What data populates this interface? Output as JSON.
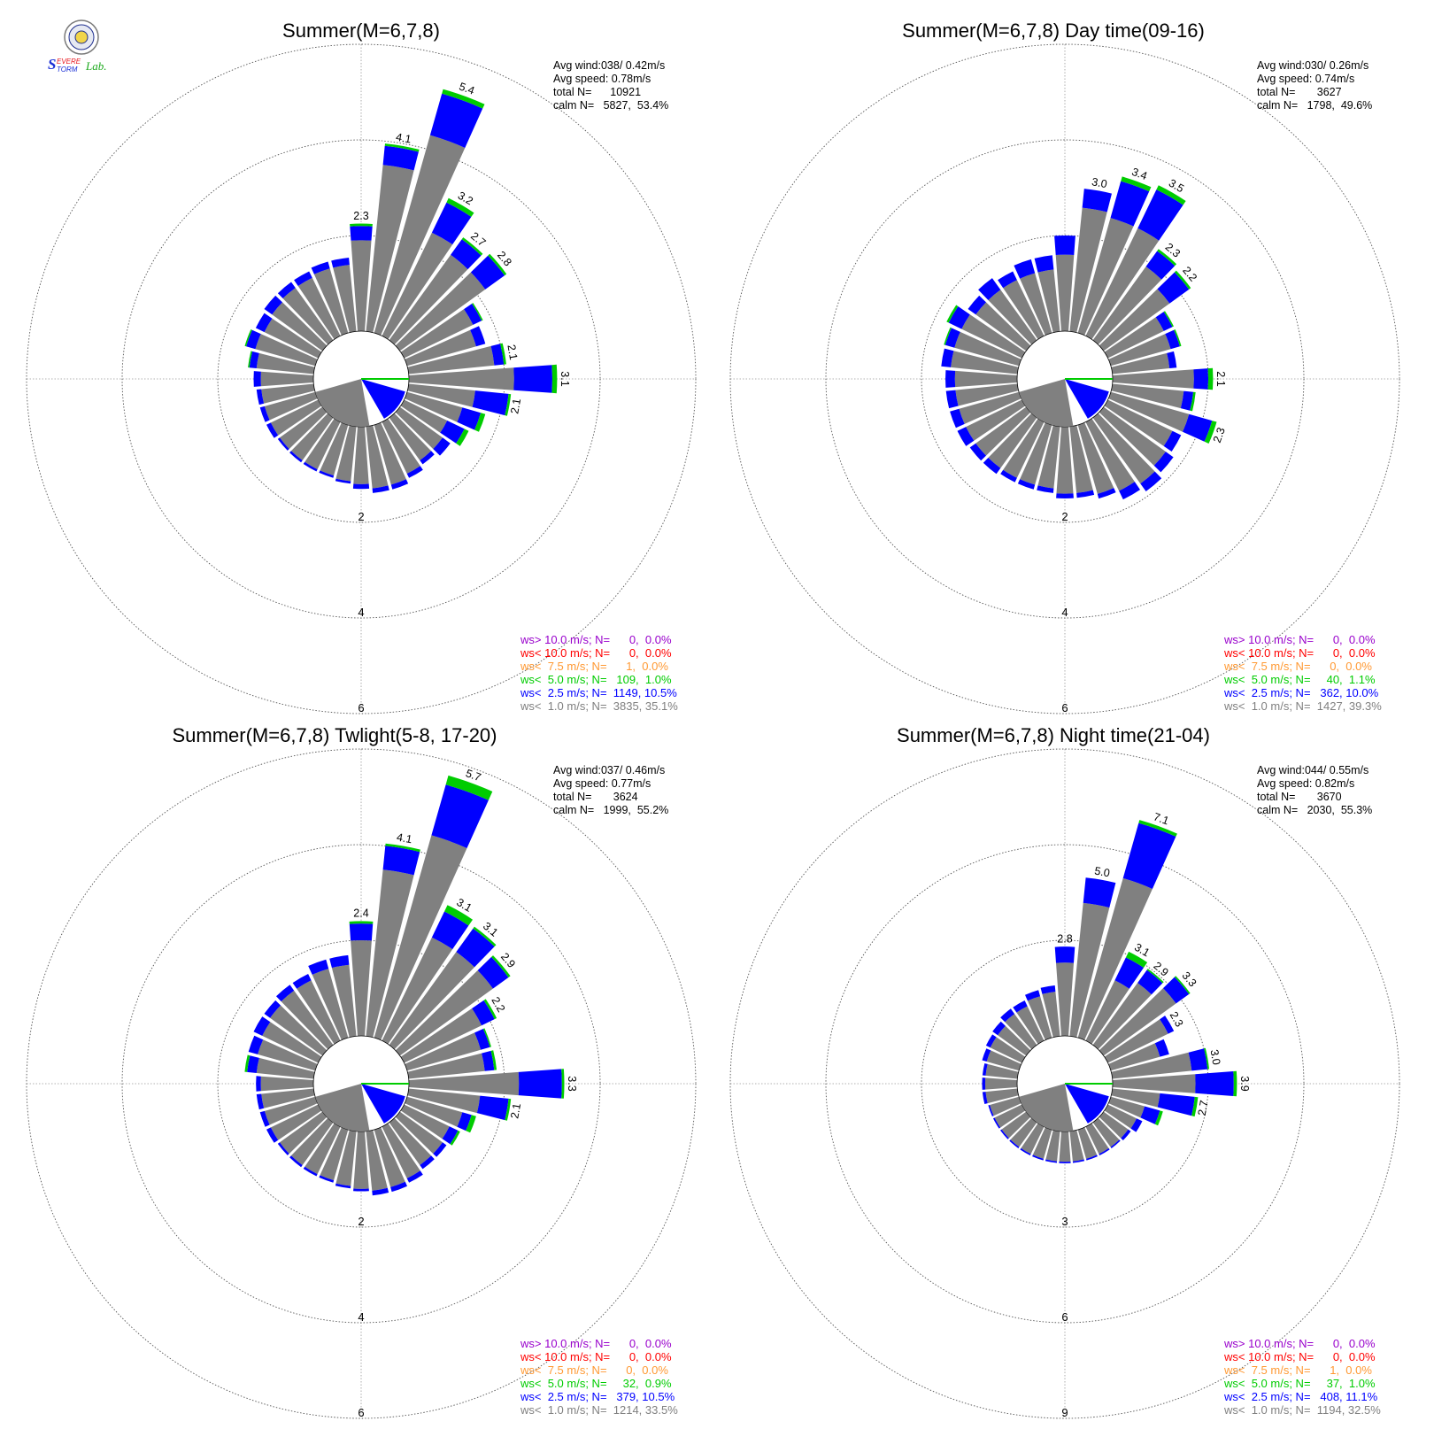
{
  "logo": {
    "text": [
      "S",
      "EVERE",
      "TORM",
      "Lab."
    ],
    "colors": {
      "s1": "#e8141b",
      "s2": "#1a2fd6",
      "lab": "#1aa81a"
    }
  },
  "colors": {
    "gray": "#808080",
    "blue": "#0000ff",
    "green": "#00cc00",
    "orange": "#ff9933",
    "red": "#ff0000",
    "purple": "#9900cc",
    "grid": "#999999"
  },
  "chart_data": [
    {
      "type": "windrose",
      "title": "Summer(M=6,7,8)",
      "stats": [
        "Avg wind:038/ 0.42m/s",
        "Avg speed: 0.78m/s",
        "total N=      10921",
        "calm N=   5827,  53.4%"
      ],
      "rings": [
        "2",
        "4",
        "6"
      ],
      "ring_values": [
        2,
        4,
        6
      ],
      "legend": [
        {
          "text": "ws> 10.0 m/s; N=      0,  0.0%",
          "color": "#9900cc"
        },
        {
          "text": "ws< 10.0 m/s; N=      0,  0.0%",
          "color": "#ff0000"
        },
        {
          "text": "ws<  7.5 m/s; N=      1,  0.0%",
          "color": "#ff9933"
        },
        {
          "text": "ws<  5.0 m/s; N=   109,  1.0%",
          "color": "#00cc00"
        },
        {
          "text": "ws<  2.5 m/s; N=  1149, 10.5%",
          "color": "#0000ff"
        },
        {
          "text": "ws<  1.0 m/s; N=  3835, 35.1%",
          "color": "#808080"
        }
      ],
      "calm_pct": 53.4,
      "petals": [
        {
          "dir": 0,
          "g": 1.9,
          "b": 0.3,
          "gr": 0.05,
          "label": "2.3"
        },
        {
          "dir": 10,
          "g": 3.5,
          "b": 0.4,
          "gr": 0.05,
          "label": "4.1"
        },
        {
          "dir": 20,
          "g": 4.3,
          "b": 0.9,
          "gr": 0.1,
          "label": "5.4"
        },
        {
          "dir": 30,
          "g": 2.4,
          "b": 0.7,
          "gr": 0.1,
          "label": "3.2"
        },
        {
          "dir": 40,
          "g": 2.2,
          "b": 0.4,
          "gr": 0.05,
          "label": "2.7"
        },
        {
          "dir": 50,
          "g": 2.2,
          "b": 0.5,
          "gr": 0.05,
          "label": "2.8"
        },
        {
          "dir": 60,
          "g": 1.6,
          "b": 0.2,
          "gr": 0.03
        },
        {
          "dir": 70,
          "g": 1.5,
          "b": 0.2
        },
        {
          "dir": 80,
          "g": 1.8,
          "b": 0.2,
          "gr": 0.05,
          "label": "2.1"
        },
        {
          "dir": 90,
          "g": 2.2,
          "b": 0.8,
          "gr": 0.1,
          "label": "3.1"
        },
        {
          "dir": 100,
          "g": 1.4,
          "b": 0.7,
          "gr": 0.05,
          "label": "2.1"
        },
        {
          "dir": 110,
          "g": 1.2,
          "b": 0.4,
          "gr": 0.1
        },
        {
          "dir": 120,
          "g": 1.0,
          "b": 0.4,
          "gr": 0.1
        },
        {
          "dir": 130,
          "g": 1.1,
          "b": 0.2
        },
        {
          "dir": 140,
          "g": 1.1,
          "b": 0.1
        },
        {
          "dir": 150,
          "g": 1.2,
          "b": 0.1
        },
        {
          "dir": 160,
          "g": 1.3,
          "b": 0.1
        },
        {
          "dir": 170,
          "g": 1.3,
          "b": 0.1
        },
        {
          "dir": 180,
          "g": 1.2,
          "b": 0.1
        },
        {
          "dir": 190,
          "g": 1.15,
          "b": 0.05
        },
        {
          "dir": 200,
          "g": 1.1,
          "b": 0.05
        },
        {
          "dir": 210,
          "g": 1.1,
          "b": 0.05
        },
        {
          "dir": 220,
          "g": 1.1,
          "b": 0.05
        },
        {
          "dir": 230,
          "g": 1.1,
          "b": 0.05
        },
        {
          "dir": 240,
          "g": 1.1,
          "b": 0.1
        },
        {
          "dir": 250,
          "g": 1.1,
          "b": 0.1
        },
        {
          "dir": 260,
          "g": 1.1,
          "b": 0.1
        },
        {
          "dir": 270,
          "g": 1.1,
          "b": 0.15
        },
        {
          "dir": 280,
          "g": 1.2,
          "b": 0.15,
          "gr": 0.03
        },
        {
          "dir": 290,
          "g": 1.3,
          "b": 0.2,
          "gr": 0.03
        },
        {
          "dir": 300,
          "g": 1.25,
          "b": 0.2
        },
        {
          "dir": 310,
          "g": 1.3,
          "b": 0.2
        },
        {
          "dir": 320,
          "g": 1.35,
          "b": 0.15
        },
        {
          "dir": 330,
          "g": 1.35,
          "b": 0.15
        },
        {
          "dir": 340,
          "g": 1.4,
          "b": 0.15
        },
        {
          "dir": 350,
          "g": 1.4,
          "b": 0.15
        }
      ]
    },
    {
      "type": "windrose",
      "title": "Summer(M=6,7,8) Day time(09-16)",
      "stats": [
        "Avg wind:030/ 0.26m/s",
        "Avg speed: 0.74m/s",
        "total N=       3627",
        "calm N=   1798,  49.6%"
      ],
      "rings": [
        "2",
        "4",
        "6"
      ],
      "ring_values": [
        2,
        4,
        6
      ],
      "legend": [
        {
          "text": "ws> 10.0 m/s; N=      0,  0.0%",
          "color": "#9900cc"
        },
        {
          "text": "ws< 10.0 m/s; N=      0,  0.0%",
          "color": "#ff0000"
        },
        {
          "text": "ws<  7.5 m/s; N=      0,  0.0%",
          "color": "#ff9933"
        },
        {
          "text": "ws<  5.0 m/s; N=     40,  1.1%",
          "color": "#00cc00"
        },
        {
          "text": "ws<  2.5 m/s; N=   362, 10.0%",
          "color": "#0000ff"
        },
        {
          "text": "ws<  1.0 m/s; N=  1427, 39.3%",
          "color": "#808080"
        }
      ],
      "calm_pct": 49.6,
      "petals": [
        {
          "dir": 0,
          "g": 1.6,
          "b": 0.4
        },
        {
          "dir": 10,
          "g": 2.6,
          "b": 0.4,
          "label": "3.0"
        },
        {
          "dir": 20,
          "g": 2.5,
          "b": 0.8,
          "gr": 0.1,
          "label": "3.4"
        },
        {
          "dir": 30,
          "g": 2.5,
          "b": 0.9,
          "gr": 0.1,
          "label": "3.5"
        },
        {
          "dir": 40,
          "g": 1.9,
          "b": 0.4,
          "gr": 0.05,
          "label": "2.3"
        },
        {
          "dir": 50,
          "g": 1.7,
          "b": 0.5,
          "gr": 0.05,
          "label": "2.2"
        },
        {
          "dir": 60,
          "g": 1.3,
          "b": 0.2,
          "gr": 0.03
        },
        {
          "dir": 70,
          "g": 1.3,
          "b": 0.2,
          "gr": 0.03
        },
        {
          "dir": 80,
          "g": 1.2,
          "b": 0.15
        },
        {
          "dir": 90,
          "g": 1.7,
          "b": 0.3,
          "gr": 0.1,
          "label": "2.1"
        },
        {
          "dir": 100,
          "g": 1.5,
          "b": 0.2,
          "gr": 0.05
        },
        {
          "dir": 110,
          "g": 1.7,
          "b": 0.5,
          "gr": 0.1,
          "label": "2.3"
        },
        {
          "dir": 120,
          "g": 1.5,
          "b": 0.2
        },
        {
          "dir": 130,
          "g": 1.6,
          "b": 0.2
        },
        {
          "dir": 140,
          "g": 1.7,
          "b": 0.2
        },
        {
          "dir": 150,
          "g": 1.6,
          "b": 0.2
        },
        {
          "dir": 160,
          "g": 1.5,
          "b": 0.1
        },
        {
          "dir": 170,
          "g": 1.4,
          "b": 0.1
        },
        {
          "dir": 180,
          "g": 1.4,
          "b": 0.1
        },
        {
          "dir": 190,
          "g": 1.3,
          "b": 0.1
        },
        {
          "dir": 200,
          "g": 1.3,
          "b": 0.1
        },
        {
          "dir": 210,
          "g": 1.3,
          "b": 0.1
        },
        {
          "dir": 220,
          "g": 1.3,
          "b": 0.15
        },
        {
          "dir": 230,
          "g": 1.3,
          "b": 0.15
        },
        {
          "dir": 240,
          "g": 1.3,
          "b": 0.2
        },
        {
          "dir": 250,
          "g": 1.3,
          "b": 0.2
        },
        {
          "dir": 260,
          "g": 1.3,
          "b": 0.2
        },
        {
          "dir": 270,
          "g": 1.3,
          "b": 0.2
        },
        {
          "dir": 280,
          "g": 1.4,
          "b": 0.2
        },
        {
          "dir": 290,
          "g": 1.4,
          "b": 0.2,
          "gr": 0.03
        },
        {
          "dir": 300,
          "g": 1.4,
          "b": 0.3,
          "gr": 0.05
        },
        {
          "dir": 310,
          "g": 1.3,
          "b": 0.2
        },
        {
          "dir": 320,
          "g": 1.3,
          "b": 0.3
        },
        {
          "dir": 330,
          "g": 1.3,
          "b": 0.2
        },
        {
          "dir": 340,
          "g": 1.3,
          "b": 0.3
        },
        {
          "dir": 350,
          "g": 1.3,
          "b": 0.3
        }
      ]
    },
    {
      "type": "windrose",
      "title": "Summer(M=6,7,8) Twlight(5-8, 17-20)",
      "stats": [
        "Avg wind:037/ 0.46m/s",
        "Avg speed: 0.77m/s",
        "total N=       3624",
        "calm N=   1999,  55.2%"
      ],
      "rings": [
        "2",
        "4",
        "6"
      ],
      "ring_values": [
        2,
        4,
        6
      ],
      "legend": [
        {
          "text": "ws> 10.0 m/s; N=      0,  0.0%",
          "color": "#9900cc"
        },
        {
          "text": "ws< 10.0 m/s; N=      0,  0.0%",
          "color": "#ff0000"
        },
        {
          "text": "ws<  7.5 m/s; N=      0,  0.0%",
          "color": "#ff9933"
        },
        {
          "text": "ws<  5.0 m/s; N=     32,  0.9%",
          "color": "#00cc00"
        },
        {
          "text": "ws<  2.5 m/s; N=   379, 10.5%",
          "color": "#0000ff"
        },
        {
          "text": "ws<  1.0 m/s; N=  1214, 33.5%",
          "color": "#808080"
        }
      ],
      "calm_pct": 55.2,
      "petals": [
        {
          "dir": 0,
          "g": 2.0,
          "b": 0.35,
          "gr": 0.05,
          "label": "2.4"
        },
        {
          "dir": 10,
          "g": 3.5,
          "b": 0.5,
          "gr": 0.05,
          "label": "4.1"
        },
        {
          "dir": 20,
          "g": 4.4,
          "b": 1.1,
          "gr": 0.2,
          "label": "5.7"
        },
        {
          "dir": 30,
          "g": 2.4,
          "b": 0.6,
          "gr": 0.15,
          "label": "3.1"
        },
        {
          "dir": 40,
          "g": 2.4,
          "b": 0.6,
          "gr": 0.05,
          "label": "3.1"
        },
        {
          "dir": 50,
          "g": 2.4,
          "b": 0.4,
          "gr": 0.05,
          "label": "2.9"
        },
        {
          "dir": 60,
          "g": 1.8,
          "b": 0.3,
          "gr": 0.05,
          "label": "2.2"
        },
        {
          "dir": 70,
          "g": 1.6,
          "b": 0.2,
          "gr": 0.03
        },
        {
          "dir": 80,
          "g": 1.6,
          "b": 0.2,
          "gr": 0.05
        },
        {
          "dir": 90,
          "g": 2.3,
          "b": 0.9,
          "gr": 0.05,
          "label": "3.3"
        },
        {
          "dir": 100,
          "g": 1.5,
          "b": 0.6,
          "gr": 0.05,
          "label": "2.1"
        },
        {
          "dir": 110,
          "g": 1.2,
          "b": 0.2,
          "gr": 0.1
        },
        {
          "dir": 120,
          "g": 1.05,
          "b": 0.2,
          "gr": 0.05
        },
        {
          "dir": 130,
          "g": 1.1,
          "b": 0.1
        },
        {
          "dir": 140,
          "g": 1.1,
          "b": 0.1
        },
        {
          "dir": 150,
          "g": 1.2,
          "b": 0.1
        },
        {
          "dir": 160,
          "g": 1.25,
          "b": 0.1
        },
        {
          "dir": 170,
          "g": 1.25,
          "b": 0.1
        },
        {
          "dir": 180,
          "g": 1.2,
          "b": 0.05
        },
        {
          "dir": 190,
          "g": 1.15,
          "b": 0.05
        },
        {
          "dir": 200,
          "g": 1.1,
          "b": 0.05
        },
        {
          "dir": 210,
          "g": 1.1,
          "b": 0.05
        },
        {
          "dir": 220,
          "g": 1.1,
          "b": 0.05
        },
        {
          "dir": 230,
          "g": 1.1,
          "b": 0.05
        },
        {
          "dir": 240,
          "g": 1.1,
          "b": 0.1
        },
        {
          "dir": 250,
          "g": 1.1,
          "b": 0.1
        },
        {
          "dir": 260,
          "g": 1.1,
          "b": 0.1
        },
        {
          "dir": 270,
          "g": 1.1,
          "b": 0.1
        },
        {
          "dir": 280,
          "g": 1.2,
          "b": 0.2,
          "gr": 0.05
        },
        {
          "dir": 290,
          "g": 1.25,
          "b": 0.2
        },
        {
          "dir": 300,
          "g": 1.3,
          "b": 0.2
        },
        {
          "dir": 310,
          "g": 1.35,
          "b": 0.15
        },
        {
          "dir": 320,
          "g": 1.4,
          "b": 0.15
        },
        {
          "dir": 330,
          "g": 1.4,
          "b": 0.15
        },
        {
          "dir": 340,
          "g": 1.5,
          "b": 0.2
        },
        {
          "dir": 350,
          "g": 1.5,
          "b": 0.2
        }
      ]
    },
    {
      "type": "windrose",
      "title": "Summer(M=6,7,8) Night time(21-04)",
      "stats": [
        "Avg wind:044/ 0.55m/s",
        "Avg speed: 0.82m/s",
        "total N=       3670",
        "calm N=   2030,  55.3%"
      ],
      "rings": [
        "3",
        "6",
        "9"
      ],
      "ring_values": [
        3,
        6,
        9
      ],
      "legend": [
        {
          "text": "ws> 10.0 m/s; N=      0,  0.0%",
          "color": "#9900cc"
        },
        {
          "text": "ws< 10.0 m/s; N=      0,  0.0%",
          "color": "#ff0000"
        },
        {
          "text": "ws<  7.5 m/s; N=      1,  0.0%",
          "color": "#ff9933"
        },
        {
          "text": "ws<  5.0 m/s; N=     37,  1.0%",
          "color": "#00cc00"
        },
        {
          "text": "ws<  2.5 m/s; N=   408, 11.1%",
          "color": "#0000ff"
        },
        {
          "text": "ws<  1.0 m/s; N=  1194, 32.5%",
          "color": "#808080"
        }
      ],
      "calm_pct": 55.3,
      "petals": [
        {
          "dir": 0,
          "g": 2.3,
          "b": 0.5,
          "label": "2.8"
        },
        {
          "dir": 10,
          "g": 4.2,
          "b": 0.8,
          "label": "5.0"
        },
        {
          "dir": 20,
          "g": 5.2,
          "b": 1.8,
          "gr": 0.1,
          "label": "7.1"
        },
        {
          "dir": 30,
          "g": 2.1,
          "b": 0.8,
          "gr": 0.2,
          "label": "3.1"
        },
        {
          "dir": 40,
          "g": 2.4,
          "b": 0.5,
          "gr": 0.05,
          "label": "2.9"
        },
        {
          "dir": 50,
          "g": 2.8,
          "b": 0.5,
          "gr": 0.05,
          "label": "3.3"
        },
        {
          "dir": 60,
          "g": 2.1,
          "b": 0.2,
          "label": "2.3"
        },
        {
          "dir": 70,
          "g": 1.6,
          "b": 0.3
        },
        {
          "dir": 80,
          "g": 2.5,
          "b": 0.5,
          "gr": 0.05,
          "label": "3.0"
        },
        {
          "dir": 90,
          "g": 2.6,
          "b": 1.2,
          "gr": 0.1,
          "label": "3.9"
        },
        {
          "dir": 100,
          "g": 1.5,
          "b": 1.1,
          "gr": 0.1,
          "label": "2.7"
        },
        {
          "dir": 110,
          "g": 1.1,
          "b": 0.5,
          "gr": 0.1
        },
        {
          "dir": 120,
          "g": 1.0,
          "b": 0.2
        },
        {
          "dir": 130,
          "g": 0.95,
          "b": 0.1
        },
        {
          "dir": 140,
          "g": 0.95,
          "b": 0.05
        },
        {
          "dir": 150,
          "g": 0.95,
          "b": 0.05
        },
        {
          "dir": 160,
          "g": 0.95,
          "b": 0.05
        },
        {
          "dir": 170,
          "g": 0.95,
          "b": 0.05
        },
        {
          "dir": 180,
          "g": 0.95,
          "b": 0.05
        },
        {
          "dir": 190,
          "g": 0.95,
          "b": 0.05
        },
        {
          "dir": 200,
          "g": 0.95,
          "b": 0.05
        },
        {
          "dir": 210,
          "g": 0.95,
          "b": 0.05
        },
        {
          "dir": 220,
          "g": 0.95,
          "b": 0.05
        },
        {
          "dir": 230,
          "g": 0.95,
          "b": 0.05
        },
        {
          "dir": 240,
          "g": 0.95,
          "b": 0.05
        },
        {
          "dir": 250,
          "g": 0.95,
          "b": 0.05
        },
        {
          "dir": 260,
          "g": 1.0,
          "b": 0.1
        },
        {
          "dir": 270,
          "g": 1.0,
          "b": 0.1
        },
        {
          "dir": 280,
          "g": 1.0,
          "b": 0.1
        },
        {
          "dir": 290,
          "g": 1.05,
          "b": 0.15
        },
        {
          "dir": 300,
          "g": 1.1,
          "b": 0.15
        },
        {
          "dir": 310,
          "g": 1.1,
          "b": 0.2
        },
        {
          "dir": 320,
          "g": 1.2,
          "b": 0.2
        },
        {
          "dir": 330,
          "g": 1.2,
          "b": 0.2
        },
        {
          "dir": 340,
          "g": 1.35,
          "b": 0.2
        },
        {
          "dir": 350,
          "g": 1.4,
          "b": 0.2
        }
      ]
    }
  ]
}
